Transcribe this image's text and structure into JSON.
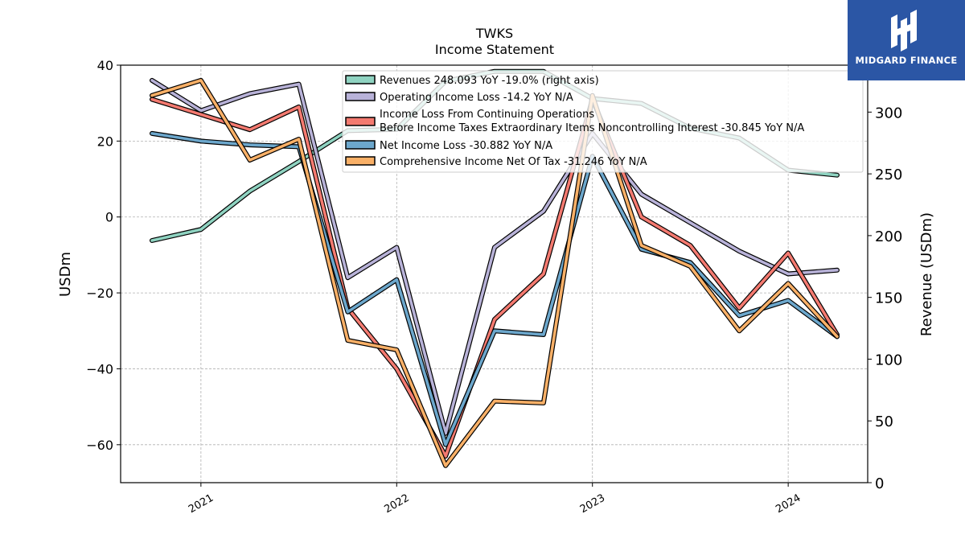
{
  "header": {
    "title": "TWKS",
    "subtitle": "Income Statement"
  },
  "logo": {
    "text": "MIDGARD FINANCE",
    "color": "#2b56a5"
  },
  "chart_data": {
    "type": "line",
    "x": [
      "2020-10",
      "2021-01",
      "2021-04",
      "2021-07",
      "2021-10",
      "2022-01",
      "2022-04",
      "2022-07",
      "2022-10",
      "2023-01",
      "2023-04",
      "2023-07",
      "2023-10",
      "2024-01",
      "2024-04"
    ],
    "x_ticks": [
      "2021",
      "2022",
      "2023",
      "2024"
    ],
    "y_left": {
      "label": "USDm",
      "lim": [
        -70,
        40
      ],
      "ticks": [
        "40",
        "20",
        "0",
        "−20",
        "−40",
        "−60"
      ],
      "tick_values": [
        40,
        20,
        0,
        -20,
        -40,
        -60
      ]
    },
    "y_right": {
      "label": "Revenue (USDm)",
      "lim": [
        0,
        338
      ],
      "ticks": [
        "300",
        "250",
        "200",
        "150",
        "100",
        "50",
        "0"
      ],
      "tick_values": [
        300,
        250,
        200,
        150,
        100,
        50,
        0
      ]
    },
    "grid": true,
    "legend_position": "top-right",
    "series": [
      {
        "name": "Revenues  248.093 YoY -19.0% (right axis)",
        "axis": "right",
        "color": "#8fd3c1",
        "values": [
          196,
          205,
          236,
          260,
          285,
          286,
          325,
          333,
          333,
          311,
          307,
          287,
          279,
          253,
          249
        ]
      },
      {
        "name": "Operating Income Loss  -14.2 YoY N/A",
        "axis": "left",
        "color": "#b8b2d8",
        "values": [
          36,
          28,
          32.5,
          35,
          -16,
          -8,
          -57,
          -8,
          1.5,
          22,
          6,
          -1.5,
          -9,
          -15,
          -14
        ]
      },
      {
        "name_lines": [
          "Income Loss From Continuing Operations",
          "Before Income Taxes Extraordinary Items Noncontrolling Interest  -30.845 YoY N/A"
        ],
        "name": "Income Loss From Continuing Operations Before Income Taxes Extraordinary Items Noncontrolling Interest  -30.845 YoY N/A",
        "axis": "left",
        "color": "#f47a70",
        "values": [
          31,
          27,
          23,
          29,
          -24,
          -40,
          -63,
          -27,
          -15,
          31,
          0,
          -7.5,
          -24,
          -9.5,
          -31
        ]
      },
      {
        "name": "Net Income Loss  -30.882 YoY N/A",
        "axis": "left",
        "color": "#6ca7cc",
        "values": [
          22,
          20,
          19,
          18.5,
          -25,
          -16.5,
          -60,
          -30,
          -31,
          16,
          -8.5,
          -12,
          -26,
          -22,
          -31.5
        ]
      },
      {
        "name": "Comprehensive Income Net Of Tax  -31.246 YoY N/A",
        "axis": "left",
        "color": "#f9b067",
        "values": [
          32,
          36,
          15,
          20.5,
          -32.5,
          -35,
          -65.5,
          -48.5,
          -49,
          32,
          -7.5,
          -13,
          -30,
          -17.5,
          -31.5
        ]
      }
    ]
  }
}
